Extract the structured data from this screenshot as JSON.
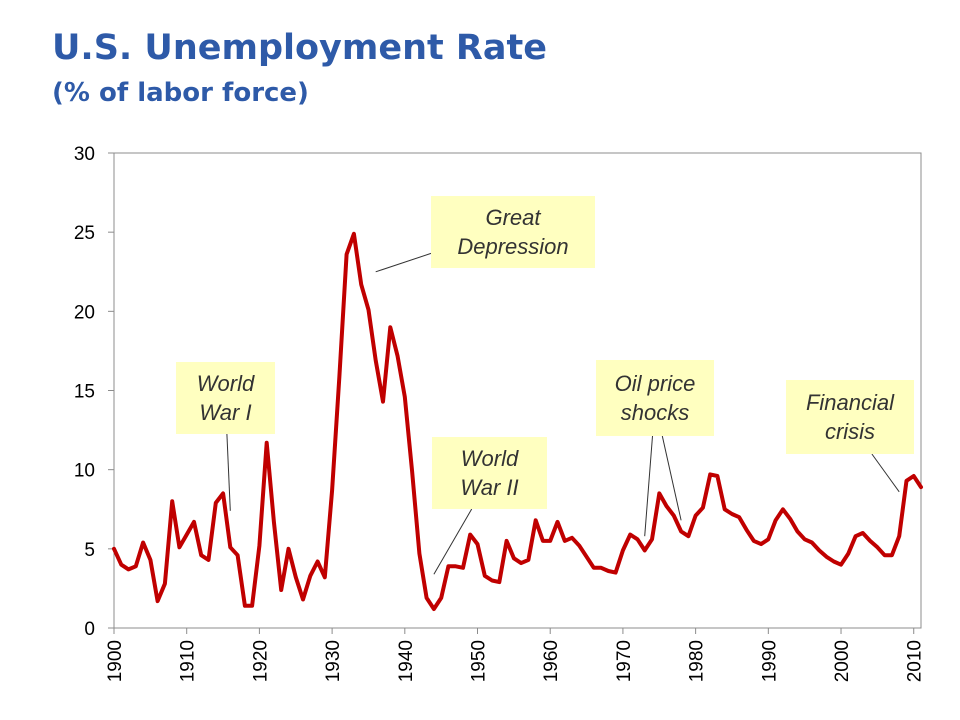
{
  "title": "U.S. Unemployment Rate",
  "subtitle": "(% of labor force)",
  "colors": {
    "title": "#2e5aa8",
    "series": "#c00000",
    "callout_bg": "#ffffc0",
    "callout_text": "#333333"
  },
  "chart_data": {
    "type": "line",
    "xlim": [
      1900,
      2011
    ],
    "ylim": [
      0,
      30
    ],
    "yticks": [
      "0",
      "5",
      "10",
      "15",
      "20",
      "25",
      "30"
    ],
    "xticks": [
      "1900",
      "1910",
      "1920",
      "1930",
      "1940",
      "1950",
      "1960",
      "1970",
      "1980",
      "1990",
      "2000",
      "2010"
    ],
    "grid": false,
    "legend": "none",
    "series": [
      {
        "color": "#c00000",
        "x": [
          1900,
          1901,
          1902,
          1903,
          1904,
          1905,
          1906,
          1907,
          1908,
          1909,
          1910,
          1911,
          1912,
          1913,
          1914,
          1915,
          1916,
          1917,
          1918,
          1919,
          1920,
          1921,
          1922,
          1923,
          1924,
          1925,
          1926,
          1927,
          1928,
          1929,
          1930,
          1931,
          1932,
          1933,
          1934,
          1935,
          1936,
          1937,
          1938,
          1939,
          1940,
          1941,
          1942,
          1943,
          1944,
          1945,
          1946,
          1947,
          1948,
          1949,
          1950,
          1951,
          1952,
          1953,
          1954,
          1955,
          1956,
          1957,
          1958,
          1959,
          1960,
          1961,
          1962,
          1963,
          1964,
          1965,
          1966,
          1967,
          1968,
          1969,
          1970,
          1971,
          1972,
          1973,
          1974,
          1975,
          1976,
          1977,
          1978,
          1979,
          1980,
          1981,
          1982,
          1983,
          1984,
          1985,
          1986,
          1987,
          1988,
          1989,
          1990,
          1991,
          1992,
          1993,
          1994,
          1995,
          1996,
          1997,
          1998,
          1999,
          2000,
          2001,
          2002,
          2003,
          2004,
          2005,
          2006,
          2007,
          2008,
          2009,
          2010,
          2011
        ],
        "y": [
          5.0,
          4.0,
          3.7,
          3.9,
          5.4,
          4.3,
          1.7,
          2.8,
          8.0,
          5.1,
          5.9,
          6.7,
          4.6,
          4.3,
          7.9,
          8.5,
          5.1,
          4.6,
          1.4,
          1.4,
          5.2,
          11.7,
          6.7,
          2.4,
          5.0,
          3.2,
          1.8,
          3.3,
          4.2,
          3.2,
          8.7,
          15.9,
          23.6,
          24.9,
          21.7,
          20.1,
          16.9,
          14.3,
          19.0,
          17.2,
          14.6,
          9.9,
          4.7,
          1.9,
          1.2,
          1.9,
          3.9,
          3.9,
          3.8,
          5.9,
          5.3,
          3.3,
          3.0,
          2.9,
          5.5,
          4.4,
          4.1,
          4.3,
          6.8,
          5.5,
          5.5,
          6.7,
          5.5,
          5.7,
          5.2,
          4.5,
          3.8,
          3.8,
          3.6,
          3.5,
          4.9,
          5.9,
          5.6,
          4.9,
          5.6,
          8.5,
          7.7,
          7.1,
          6.1,
          5.8,
          7.1,
          7.6,
          9.7,
          9.6,
          7.5,
          7.2,
          7.0,
          6.2,
          5.5,
          5.3,
          5.6,
          6.8,
          7.5,
          6.9,
          6.1,
          5.6,
          5.4,
          4.9,
          4.5,
          4.2,
          4.0,
          4.7,
          5.8,
          6.0,
          5.5,
          5.1,
          4.6,
          4.6,
          5.8,
          9.3,
          9.6,
          8.9
        ]
      }
    ],
    "annotations": [
      {
        "lines": [
          "World",
          "War I"
        ],
        "target_x": 1916,
        "target_y": 7.4
      },
      {
        "lines": [
          "Great",
          "Depression"
        ],
        "target_x": 1936,
        "target_y": 22.5
      },
      {
        "lines": [
          "World",
          "War II"
        ],
        "target_x": 1944,
        "target_y": 3.4
      },
      {
        "lines": [
          "Oil price",
          "shocks"
        ],
        "target_x": [
          1973,
          1978
        ],
        "target_y": [
          5.8,
          6.8
        ]
      },
      {
        "lines": [
          "Financial",
          "crisis"
        ],
        "target_x": 2008,
        "target_y": 8.6
      }
    ]
  }
}
